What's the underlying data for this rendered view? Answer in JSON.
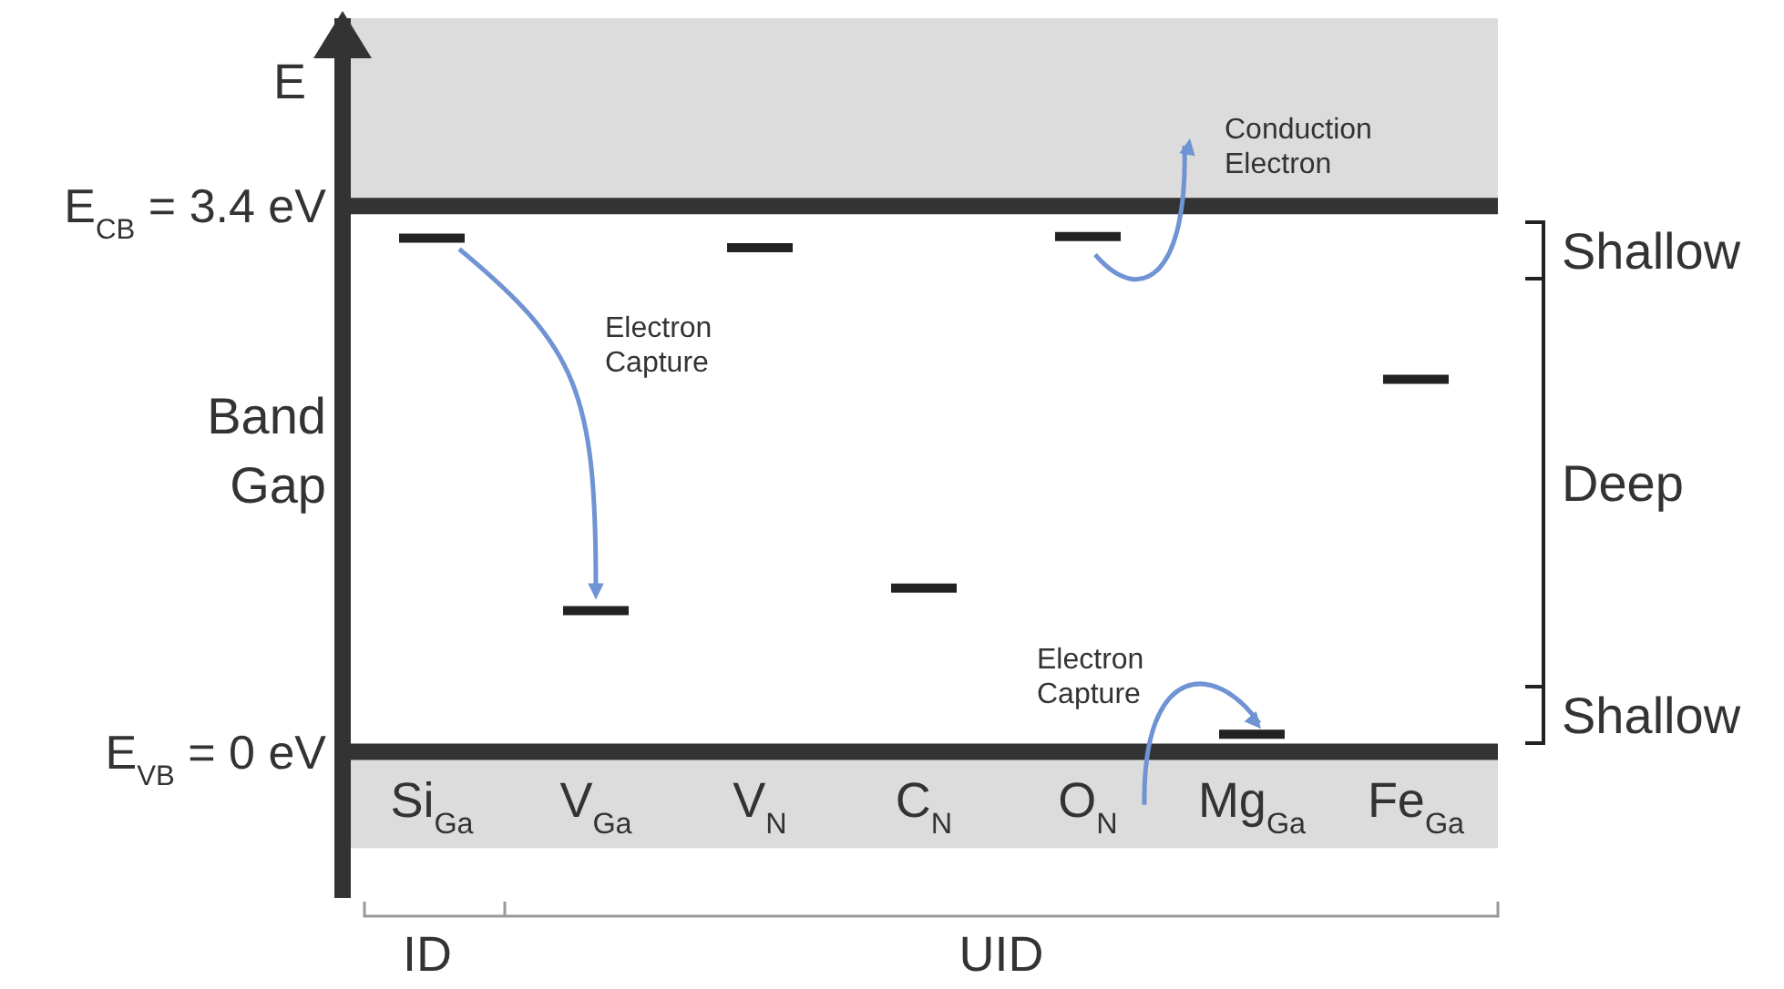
{
  "chart_data": {
    "type": "line",
    "ylabel": "E",
    "categories": [
      null,
      null,
      "Si$_{Ga}$",
      null,
      null,
      null,
      null,
      "V$_{Ga}$",
      null,
      null,
      null,
      null,
      "V$_{N}$",
      null,
      null,
      null,
      null,
      "C$_{N}$",
      null,
      null,
      null,
      null,
      "O$_{N}$",
      null,
      null,
      null,
      null,
      "Mg$_{Ga}$",
      null,
      null,
      null,
      null,
      "Fe$_{Ga}$",
      null,
      null
    ],
    "series": [
      {
        "color": "#222222",
        "values": [
          null,
          3.2,
          3.2,
          3.2,
          null,
          null,
          null,
          null,
          null,
          null,
          null,
          null,
          null,
          null,
          null,
          null,
          null,
          null,
          null,
          null,
          null,
          null,
          null,
          null,
          null,
          null,
          null,
          null,
          null,
          null,
          null,
          null,
          null,
          null,
          null
        ]
      },
      {
        "color": "#222222",
        "values": [
          null,
          null,
          null,
          null,
          null,
          null,
          0.88,
          0.88,
          0.88,
          null,
          null,
          null,
          null,
          null,
          null,
          null,
          null,
          null,
          null,
          null,
          null,
          null,
          null,
          null,
          null,
          null,
          null,
          null,
          null,
          null,
          null,
          null,
          null,
          null,
          null
        ]
      },
      {
        "color": "#222222",
        "values": [
          null,
          null,
          null,
          null,
          null,
          null,
          null,
          null,
          null,
          null,
          null,
          3.14,
          3.14,
          3.14,
          null,
          null,
          null,
          null,
          null,
          null,
          null,
          null,
          null,
          null,
          null,
          null,
          null,
          null,
          null,
          null,
          null,
          null,
          null,
          null,
          null
        ]
      },
      {
        "color": "#222222",
        "values": [
          null,
          null,
          null,
          null,
          null,
          null,
          null,
          null,
          null,
          null,
          null,
          null,
          null,
          null,
          null,
          null,
          1.02,
          1.02,
          1.02,
          null,
          null,
          null,
          null,
          null,
          null,
          null,
          null,
          null,
          null,
          null,
          null,
          null,
          null,
          null,
          null
        ]
      },
      {
        "color": "#222222",
        "values": [
          null,
          null,
          null,
          null,
          null,
          null,
          null,
          null,
          null,
          null,
          null,
          null,
          null,
          null,
          null,
          null,
          null,
          null,
          null,
          null,
          null,
          3.21,
          3.21,
          3.21,
          null,
          null,
          null,
          null,
          null,
          null,
          null,
          null,
          null,
          null,
          null
        ]
      },
      {
        "color": "#222222",
        "values": [
          null,
          null,
          null,
          null,
          null,
          null,
          null,
          null,
          null,
          null,
          null,
          null,
          null,
          null,
          null,
          null,
          null,
          null,
          null,
          null,
          null,
          null,
          null,
          null,
          null,
          null,
          0.11,
          0.11,
          0.11,
          null,
          null,
          null,
          null,
          null,
          null
        ]
      },
      {
        "color": "#222222",
        "values": [
          null,
          null,
          null,
          null,
          null,
          null,
          null,
          null,
          null,
          null,
          null,
          null,
          null,
          null,
          null,
          null,
          null,
          null,
          null,
          null,
          null,
          null,
          null,
          null,
          null,
          null,
          null,
          null,
          null,
          null,
          null,
          2.32,
          2.32,
          2.32,
          null
        ]
      }
    ],
    "ylim": [
      -0.91,
      4.57
    ],
    "yticks": [
      {
        "value": 0,
        "label": "E$_{VB}$ = 0 eV"
      },
      {
        "value": 3.4,
        "label": "E$_{CB}$ = 3.4 eV"
      }
    ],
    "grid": "y",
    "bands": [
      {
        "axis": "y",
        "from": 3.4,
        "to": 4.57,
        "color": "#dcdcdc"
      },
      {
        "axis": "y",
        "from": -0.6,
        "to": 0,
        "color": "#dcdcdc"
      }
    ],
    "annotations": [
      "Band Gap",
      "Electron Capture",
      "Conduction Electron",
      "Electron Capture",
      "ID",
      "UID",
      "Shallow",
      "Deep",
      "Shallow"
    ]
  }
}
